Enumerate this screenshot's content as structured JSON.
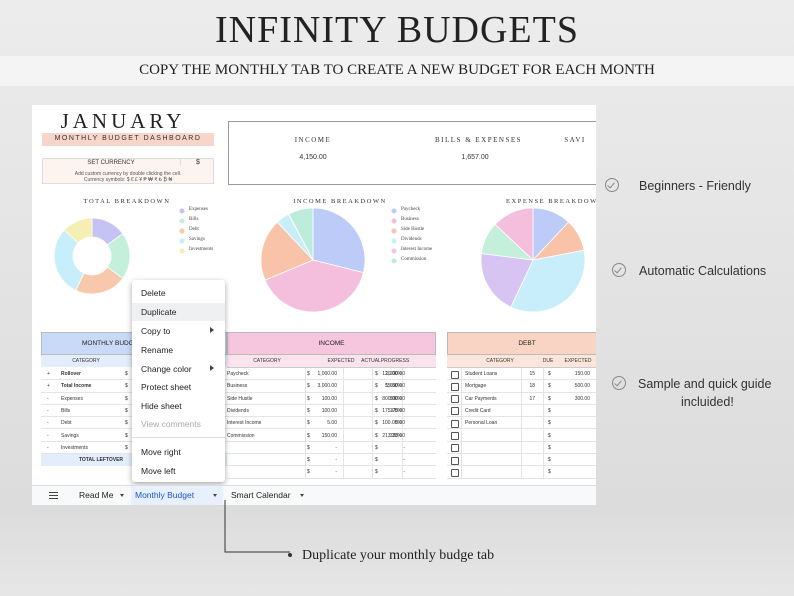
{
  "header": {
    "title": "INFINITY BUDGETS",
    "subtitle": "COPY THE MONTHLY TAB TO CREATE A NEW BUDGET FOR EACH MONTH"
  },
  "sheet": {
    "month": "JANUARY",
    "dashboard": "MONTHLY BUDGET DASHBOARD",
    "currency": {
      "label": "SET CURRENCY",
      "value": "$",
      "note": [
        "Add custom currency by double clicking the cell.",
        "Currency symbols: $ € £ ¥ ₱ ₩ ₹ ₺ ₿ ₦"
      ]
    },
    "summary": [
      {
        "label": "INCOME",
        "value": "4,150.00"
      },
      {
        "label": "BILLS & EXPENSES",
        "value": "1,657.00"
      },
      {
        "label": "SAVI"
      }
    ],
    "pies": [
      {
        "title": "TOTAL BREAKDOWN",
        "donut": true,
        "labels": [
          "Expenses",
          "Bills",
          "Debt",
          "Savings",
          "Investments"
        ],
        "values": [
          15,
          20,
          22,
          30,
          13
        ],
        "colors": [
          "#c5c3f3",
          "#c3efdb",
          "#f8c8ad",
          "#c9eefb",
          "#f6efb4"
        ]
      },
      {
        "title": "INCOME BREAKDOWN",
        "donut": false,
        "labels": [
          "Paycheck",
          "Business",
          "Side Hustle",
          "Dividends",
          "Interest Income",
          "Commission"
        ],
        "values": [
          1200,
          1650,
          800,
          175,
          5,
          320
        ],
        "colors": [
          "#bccbf7",
          "#f4bfdc",
          "#f8c3a8",
          "#c8eef8",
          "#f3c6e6",
          "#bdebdc"
        ]
      },
      {
        "title": "EXPENSE BREAKDOWN",
        "donut": false,
        "values": [
          12,
          10,
          35,
          20,
          10,
          13
        ],
        "colors": [
          "#bccbf7",
          "#f8c3a8",
          "#c9eefb",
          "#d8c4f3",
          "#c3efdb",
          "#f4bfdc"
        ]
      }
    ],
    "budget_table": {
      "title": "MONTHLY BUDG",
      "header": "CATEGORY",
      "rows": [
        [
          "+",
          "Rollover",
          "$"
        ],
        [
          "+",
          "Total Income",
          "$"
        ],
        [
          "-",
          "Expenses",
          "$"
        ],
        [
          "-",
          "Bills",
          "$"
        ],
        [
          "-",
          "Debt",
          "$"
        ],
        [
          "-",
          "Savings",
          "$"
        ],
        [
          "-",
          "Investments",
          "$"
        ]
      ],
      "footer": "TOTAL LEFTOVER"
    },
    "income_table": {
      "title": "INCOME",
      "headers": [
        "CATEGORY",
        "EXPECTED",
        "ACTUAL",
        "PROGRESS"
      ],
      "rows": [
        [
          "Paycheck",
          "$",
          "1,000.00",
          "$",
          "1,200.00",
          "120.00%"
        ],
        [
          "Business",
          "$",
          "3,000.00",
          "$",
          "1,650.00",
          "55.00%"
        ],
        [
          "Side Hustle",
          "$",
          "100.00",
          "$",
          "800.00",
          "800.00%"
        ],
        [
          "Dividends",
          "$",
          "100.00",
          "$",
          "175.00",
          "175.00%"
        ],
        [
          "Interest Income",
          "$",
          "5.00",
          "$",
          "5.00",
          "100.00%"
        ],
        [
          "Commission",
          "$",
          "150.00",
          "$",
          "320.00",
          "213.33%"
        ],
        [
          null,
          "$",
          "-",
          "$",
          "-",
          null
        ],
        [
          null,
          "$",
          "-",
          "$",
          "-",
          null
        ],
        [
          null,
          "$",
          "-",
          "$",
          "-",
          null
        ]
      ]
    },
    "debt_table": {
      "title": "DEBT",
      "headers": [
        "CATEGORY",
        "DUE",
        "EXPECTED"
      ],
      "rows": [
        [
          "Student Loans",
          "15",
          "$",
          "150.00",
          "$"
        ],
        [
          "Mortgage",
          "18",
          "$",
          "500.00",
          "$"
        ],
        [
          "Car Payments",
          "17",
          "$",
          "300.00",
          "$"
        ],
        [
          "Credit Card",
          null,
          "$",
          null,
          "$"
        ],
        [
          "Personal Loan",
          null,
          "$",
          null,
          "$"
        ],
        [
          null,
          null,
          "$",
          null,
          "$"
        ],
        [
          null,
          null,
          "$",
          null,
          "$"
        ],
        [
          null,
          null,
          "$",
          null,
          "$"
        ],
        [
          null,
          null,
          "$",
          null,
          "$"
        ]
      ]
    }
  },
  "menu": [
    "Delete",
    "Duplicate",
    "Copy to",
    "Rename",
    "Change color",
    "Protect sheet",
    "Hide sheet",
    "View comments",
    "Move right",
    "Move left"
  ],
  "tabs": [
    "Read Me",
    "Monthly Budget",
    "Smart Calendar"
  ],
  "features": [
    "Beginners - Friendly",
    "Automatic Calculations",
    "Sample and quick guide",
    "incluided!"
  ],
  "callout": "Duplicate your monthly budge tab"
}
